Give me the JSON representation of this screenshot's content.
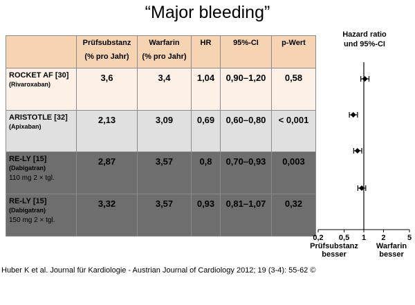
{
  "title": "“Major bleeding”",
  "table": {
    "headers": [
      "",
      "Prüfsubstanz",
      "(% pro Jahr)",
      "Warfarin",
      "(% pro Jahr)",
      "HR",
      "95%-CI",
      "p-Wert"
    ],
    "rows": [
      {
        "trial": "ROCKET AF",
        "ref": "[30]",
        "drug": "(Rivaroxaban)",
        "dose": "",
        "pruef": "3,6",
        "warfarin": "3,4",
        "hr": "1,04",
        "ci": "0,90–1,20",
        "p": "0,58"
      },
      {
        "trial": "ARISTOTLE",
        "ref": "[32]",
        "drug": "(Apixaban)",
        "dose": "",
        "pruef": "2,13",
        "warfarin": "3,09",
        "hr": "0,69",
        "ci": "0,60–0,80",
        "p": "< 0,001"
      },
      {
        "trial": "RE-LY",
        "ref": "[15]",
        "drug": "(Dabigatran)",
        "dose": "110 mg 2 × tgl.",
        "pruef": "2,87",
        "warfarin": "3,57",
        "hr": "0,8",
        "ci": "0,70–0,93",
        "p": "0,003"
      },
      {
        "trial": "RE-LY",
        "ref": "[15]",
        "drug": "(Dabigatran)",
        "dose": "150 mg 2 × tgl.",
        "pruef": "3,32",
        "warfarin": "3,57",
        "hr": "0,93",
        "ci": "0,81–1,07",
        "p": "0,32"
      }
    ]
  },
  "forest": {
    "title_line1": "Hazard ratio",
    "title_line2": "und 95%-CI",
    "ticks": [
      0.2,
      0.5,
      1,
      2,
      5
    ],
    "tick_labels": [
      "0,2",
      "0,5",
      "1",
      "2",
      "5"
    ],
    "left_label_1": "Prüfsubstanz",
    "left_label_2": "besser",
    "right_label_1": "Warfarin",
    "right_label_2": "besser",
    "points": [
      {
        "hr": 1.04,
        "lo": 0.9,
        "hi": 1.2
      },
      {
        "hr": 0.69,
        "lo": 0.6,
        "hi": 0.8
      },
      {
        "hr": 0.8,
        "lo": 0.7,
        "hi": 0.93
      },
      {
        "hr": 0.93,
        "lo": 0.81,
        "hi": 1.07
      }
    ]
  },
  "citation": "Huber K et al. Journal für Kardiologie - Austrian Journal of Cardiology 2012; 19 (3-4): 55-62 ©"
}
